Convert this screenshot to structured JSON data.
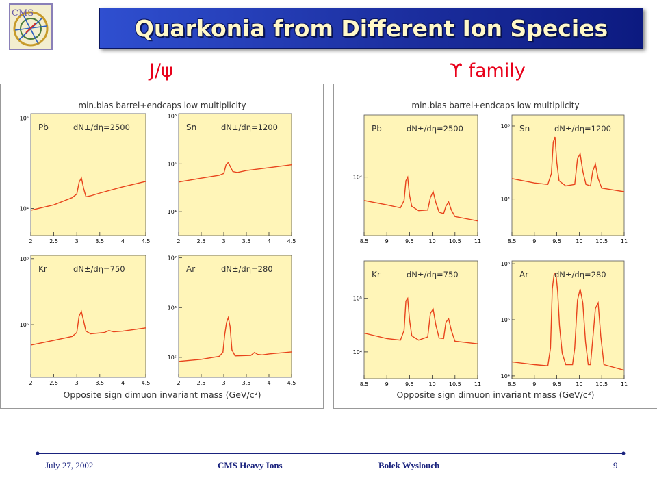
{
  "title": "Quarkonia from Different Ion Species",
  "logo": {
    "text": "CMS"
  },
  "left_heading": {
    "particle": "J/ψ"
  },
  "right_heading": {
    "symbol": "ϒ",
    "text": "family"
  },
  "footer": {
    "date": "July 27, 2002",
    "group": "CMS Heavy Ions",
    "author": "Bolek Wyslouch",
    "page": "9"
  },
  "colors": {
    "plot_bg": "#fff5b8",
    "curve": "#e8441c",
    "title_text": "#fff8c8",
    "heading": "#e8001a",
    "footer_text": "#1a237e"
  },
  "chart_data": [
    {
      "type": "line",
      "header": "min.bias   barrel+endcaps   low multiplicity",
      "xlabel": "Opposite sign dimuon invariant mass  (GeV/c²)",
      "xlim": [
        2,
        4.5
      ],
      "x_ticks": [
        "2",
        "2.5",
        "3",
        "3.5",
        "4",
        "4.5"
      ],
      "panels": [
        {
          "ion": "Pb",
          "multiplicity": "dN±/dη=2500",
          "log_ylim": [
            3.7,
            5.05
          ],
          "y_ticks": [
            {
              "label": "10⁵",
              "log": 5
            },
            {
              "label": "10⁴",
              "log": 4
            }
          ],
          "x": [
            2.0,
            2.5,
            2.9,
            3.0,
            3.05,
            3.1,
            3.15,
            3.2,
            3.3,
            3.5,
            4.0,
            4.5
          ],
          "log_y": [
            3.98,
            4.04,
            4.12,
            4.16,
            4.29,
            4.34,
            4.22,
            4.13,
            4.14,
            4.17,
            4.24,
            4.3
          ]
        },
        {
          "ion": "Sn",
          "multiplicity": "dN±/dη=1200",
          "log_ylim": [
            3.5,
            6.05
          ],
          "y_ticks": [
            {
              "label": "10⁶",
              "log": 6
            },
            {
              "label": "10⁵",
              "log": 5
            },
            {
              "label": "10⁴",
              "log": 4
            }
          ],
          "x": [
            2.0,
            2.5,
            2.9,
            3.0,
            3.05,
            3.1,
            3.15,
            3.2,
            3.3,
            3.5,
            4.0,
            4.5
          ],
          "log_y": [
            4.62,
            4.7,
            4.76,
            4.8,
            4.98,
            5.03,
            4.93,
            4.84,
            4.82,
            4.86,
            4.92,
            4.98
          ]
        },
        {
          "ion": "Kr",
          "multiplicity": "dN±/dη=750",
          "log_ylim": [
            4.2,
            6.05
          ],
          "y_ticks": [
            {
              "label": "10⁶",
              "log": 6
            },
            {
              "label": "10⁵",
              "log": 5
            }
          ],
          "x": [
            2.0,
            2.5,
            2.9,
            3.0,
            3.05,
            3.1,
            3.15,
            3.2,
            3.3,
            3.6,
            3.7,
            3.8,
            4.0,
            4.5
          ],
          "log_y": [
            4.69,
            4.76,
            4.82,
            4.88,
            5.13,
            5.2,
            5.05,
            4.9,
            4.86,
            4.88,
            4.91,
            4.89,
            4.9,
            4.95
          ]
        },
        {
          "ion": "Ar",
          "multiplicity": "dN±/dη=280",
          "log_ylim": [
            4.6,
            7.05
          ],
          "y_ticks": [
            {
              "label": "10⁷",
              "log": 7
            },
            {
              "label": "10⁶",
              "log": 6
            },
            {
              "label": "10⁵",
              "log": 5
            }
          ],
          "x": [
            2.0,
            2.5,
            2.9,
            2.98,
            3.02,
            3.06,
            3.1,
            3.14,
            3.18,
            3.25,
            3.6,
            3.68,
            3.75,
            3.85,
            4.0,
            4.5
          ],
          "log_y": [
            4.92,
            4.96,
            5.02,
            5.1,
            5.45,
            5.7,
            5.8,
            5.62,
            5.15,
            5.03,
            5.04,
            5.1,
            5.06,
            5.05,
            5.07,
            5.11
          ]
        }
      ]
    },
    {
      "type": "line",
      "header": "min.bias   barrel+endcaps   low multiplicity",
      "xlabel": "Opposite sign dimuon invariant mass  (GeV/c²)",
      "xlim": [
        8.5,
        11
      ],
      "x_ticks": [
        "8.5",
        "9",
        "9.5",
        "10",
        "10.5",
        "11"
      ],
      "panels": [
        {
          "ion": "Pb",
          "multiplicity": "dN±/dη=2500",
          "log_ylim": [
            3.2,
            4.85
          ],
          "y_ticks": [
            {
              "label": "10⁴",
              "log": 4
            }
          ],
          "x": [
            8.5,
            9.0,
            9.3,
            9.38,
            9.42,
            9.46,
            9.5,
            9.55,
            9.7,
            9.9,
            9.96,
            10.02,
            10.08,
            10.15,
            10.25,
            10.3,
            10.36,
            10.42,
            10.5,
            11.0
          ],
          "log_y": [
            3.68,
            3.62,
            3.58,
            3.68,
            3.95,
            4.0,
            3.75,
            3.6,
            3.54,
            3.55,
            3.72,
            3.8,
            3.65,
            3.52,
            3.5,
            3.6,
            3.66,
            3.55,
            3.46,
            3.4
          ]
        },
        {
          "ion": "Sn",
          "multiplicity": "dN±/dη=1200",
          "log_ylim": [
            3.5,
            5.15
          ],
          "y_ticks": [
            {
              "label": "10⁵",
              "log": 5
            },
            {
              "label": "10⁴",
              "log": 4
            }
          ],
          "x": [
            8.5,
            9.0,
            9.3,
            9.38,
            9.42,
            9.46,
            9.5,
            9.55,
            9.7,
            9.9,
            9.96,
            10.02,
            10.08,
            10.15,
            10.25,
            10.3,
            10.36,
            10.42,
            10.5,
            11.0
          ],
          "log_y": [
            4.28,
            4.22,
            4.2,
            4.35,
            4.78,
            4.85,
            4.5,
            4.25,
            4.18,
            4.2,
            4.55,
            4.62,
            4.38,
            4.2,
            4.18,
            4.38,
            4.48,
            4.28,
            4.15,
            4.1
          ]
        },
        {
          "ion": "Kr",
          "multiplicity": "dN±/dη=750",
          "log_ylim": [
            3.5,
            5.7
          ],
          "y_ticks": [
            {
              "label": "10⁵",
              "log": 5
            },
            {
              "label": "10⁴",
              "log": 4
            }
          ],
          "x": [
            8.5,
            9.0,
            9.3,
            9.38,
            9.42,
            9.46,
            9.5,
            9.55,
            9.7,
            9.9,
            9.96,
            10.02,
            10.08,
            10.15,
            10.25,
            10.3,
            10.36,
            10.42,
            10.5,
            11.0
          ],
          "log_y": [
            4.35,
            4.25,
            4.22,
            4.4,
            4.95,
            5.0,
            4.6,
            4.3,
            4.22,
            4.28,
            4.72,
            4.8,
            4.5,
            4.26,
            4.25,
            4.55,
            4.62,
            4.4,
            4.2,
            4.15
          ]
        },
        {
          "ion": "Ar",
          "multiplicity": "dN±/dη=280",
          "log_ylim": [
            3.95,
            6.05
          ],
          "y_ticks": [
            {
              "label": "10⁶",
              "log": 6
            },
            {
              "label": "10⁵",
              "log": 5
            },
            {
              "label": "10⁴",
              "log": 4
            }
          ],
          "x": [
            8.5,
            9.0,
            9.3,
            9.36,
            9.4,
            9.44,
            9.48,
            9.52,
            9.56,
            9.62,
            9.7,
            9.85,
            9.9,
            9.96,
            10.02,
            10.08,
            10.14,
            10.2,
            10.25,
            10.3,
            10.36,
            10.42,
            10.48,
            10.55,
            11.0
          ],
          "log_y": [
            4.25,
            4.2,
            4.18,
            4.5,
            5.55,
            5.82,
            5.82,
            5.5,
            4.9,
            4.4,
            4.2,
            4.2,
            4.5,
            5.35,
            5.55,
            5.3,
            4.6,
            4.2,
            4.2,
            4.65,
            5.2,
            5.3,
            4.7,
            4.2,
            4.1
          ]
        }
      ]
    }
  ]
}
